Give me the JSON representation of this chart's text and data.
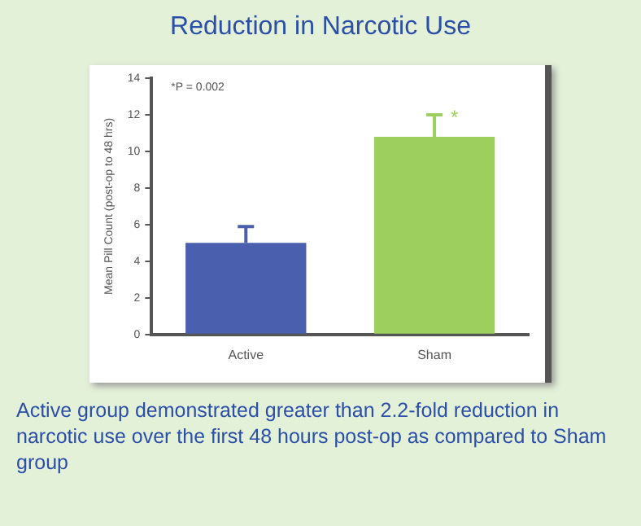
{
  "chart_data": {
    "type": "bar",
    "title": "Reduction in Narcotic Use",
    "ylabel": "Mean Pill Count (post-op to 48 hrs)",
    "categories": [
      "Active",
      "Sham"
    ],
    "values": [
      5.0,
      10.8
    ],
    "colors": [
      "#4a5fad",
      "#9dcf5f"
    ],
    "errors": [
      [
        5.0,
        5.9
      ],
      [
        10.8,
        12.0
      ]
    ],
    "ylim": [
      0,
      14
    ],
    "yticks": [
      0,
      2,
      4,
      6,
      8,
      10,
      12,
      14
    ],
    "grid": false,
    "legend": false,
    "annotations": [
      "*P = 0.002",
      {
        "text": "*",
        "x": "Sham",
        "y": 12.0
      },
      "Active group demonstrated greater than 2.2-fold reduction in narcotic use over the first 48 hours post-op as compared to Sham group"
    ]
  }
}
